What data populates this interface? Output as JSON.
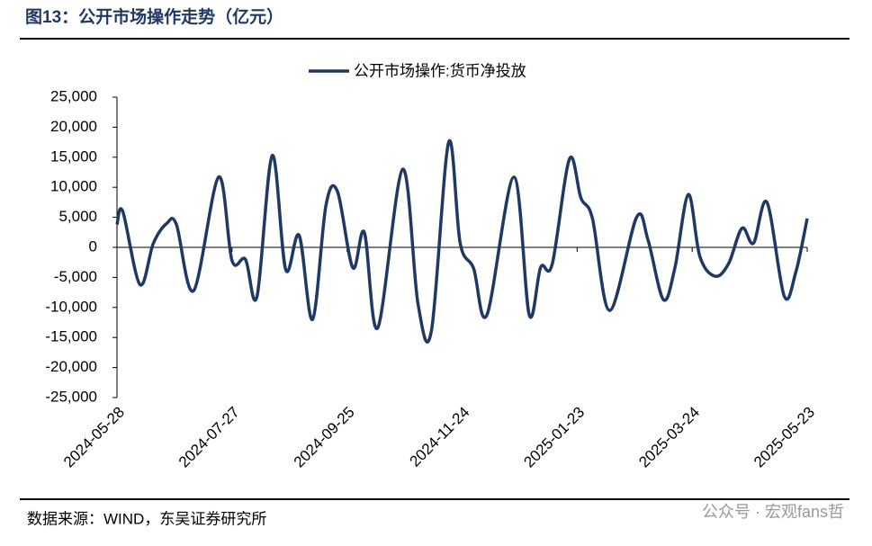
{
  "header": {
    "title": "图13：公开市场操作走势（亿元）"
  },
  "chart_data": {
    "type": "line",
    "x": [
      "2024-05-28",
      "2024-05-31",
      "2024-06-09",
      "2024-06-16",
      "2024-06-23",
      "2024-06-28",
      "2024-07-07",
      "2024-07-20",
      "2024-07-27",
      "2024-08-03",
      "2024-08-09",
      "2024-08-17",
      "2024-08-24",
      "2024-08-31",
      "2024-09-07",
      "2024-09-14",
      "2024-09-20",
      "2024-09-28",
      "2024-10-04",
      "2024-10-11",
      "2024-10-24",
      "2024-11-01",
      "2024-11-08",
      "2024-11-17",
      "2024-11-23",
      "2024-11-30",
      "2024-12-07",
      "2024-12-21",
      "2024-12-29",
      "2025-01-04",
      "2025-01-10",
      "2025-01-19",
      "2025-01-25",
      "2025-01-31",
      "2025-02-09",
      "2025-02-23",
      "2025-03-01",
      "2025-03-09",
      "2025-03-15",
      "2025-03-22",
      "2025-03-28",
      "2025-04-05",
      "2025-04-12",
      "2025-04-19",
      "2025-04-25",
      "2025-05-02",
      "2025-05-11",
      "2025-05-17",
      "2025-05-23"
    ],
    "series": [
      {
        "name": "公开市场操作:货币净投放",
        "color": "#1f3864",
        "values": [
          3800,
          6000,
          -6200,
          700,
          4000,
          3800,
          -7200,
          11700,
          -2200,
          -2000,
          -8200,
          15300,
          -3700,
          2000,
          -12000,
          7000,
          9300,
          -3400,
          2500,
          -13400,
          13000,
          -9400,
          -13900,
          17500,
          700,
          -3500,
          -11200,
          11700,
          -11200,
          -3300,
          -2800,
          14700,
          8200,
          4800,
          -10500,
          5000,
          1200,
          -8700,
          -3400,
          8800,
          -1500,
          -4800,
          -2700,
          3200,
          700,
          7500,
          -8100,
          -4200,
          4800
        ]
      }
    ],
    "xlim": [
      "2024-05-28",
      "2025-05-23"
    ],
    "xticks": [
      "2024-05-28",
      "2024-07-27",
      "2024-09-25",
      "2024-11-24",
      "2025-01-23",
      "2025-03-24",
      "2025-05-23"
    ],
    "ylim": [
      -25000,
      25000
    ],
    "yticks": [
      {
        "value": -25000,
        "label": "-25,000"
      },
      {
        "value": -20000,
        "label": "-20,000"
      },
      {
        "value": -15000,
        "label": "-15,000"
      },
      {
        "value": -10000,
        "label": "-10,000"
      },
      {
        "value": -5000,
        "label": "-5,000"
      },
      0,
      {
        "value": 5000,
        "label": "5,000"
      },
      {
        "value": 10000,
        "label": "10,000"
      },
      {
        "value": 15000,
        "label": "15,000"
      },
      {
        "value": 20000,
        "label": "20,000"
      },
      {
        "value": 25000,
        "label": "25,000"
      }
    ],
    "legend": "top"
  },
  "footer": {
    "source": "数据来源：WIND，东吴证券研究所",
    "watermark": "公众号 · 宏观fans哲"
  }
}
